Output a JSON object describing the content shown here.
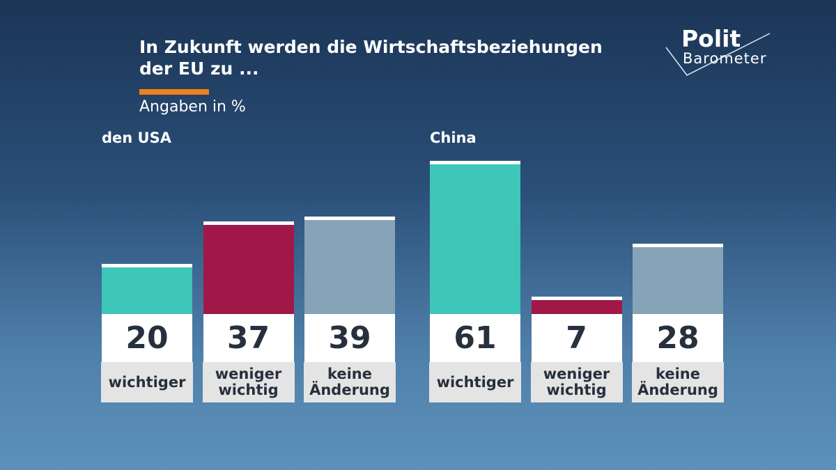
{
  "header": {
    "title": "In Zukunft werden die Wirtschaftsbeziehungen der EU zu ...",
    "subtitle": "Angaben in %"
  },
  "logo": {
    "top": "Polit",
    "bottom": "Barometer"
  },
  "chart_data": [
    {
      "type": "bar",
      "title": "den USA",
      "categories": [
        "wichtiger",
        "weniger wichtig",
        "keine Änderung"
      ],
      "values": [
        20,
        37,
        39
      ],
      "colors": [
        "#3ec6b9",
        "#a01848",
        "#87a3b8"
      ]
    },
    {
      "type": "bar",
      "title": "China",
      "categories": [
        "wichtiger",
        "weniger wichtig",
        "keine Änderung"
      ],
      "values": [
        61,
        7,
        28
      ],
      "colors": [
        "#3ec6b9",
        "#a01848",
        "#87a3b8"
      ]
    }
  ]
}
